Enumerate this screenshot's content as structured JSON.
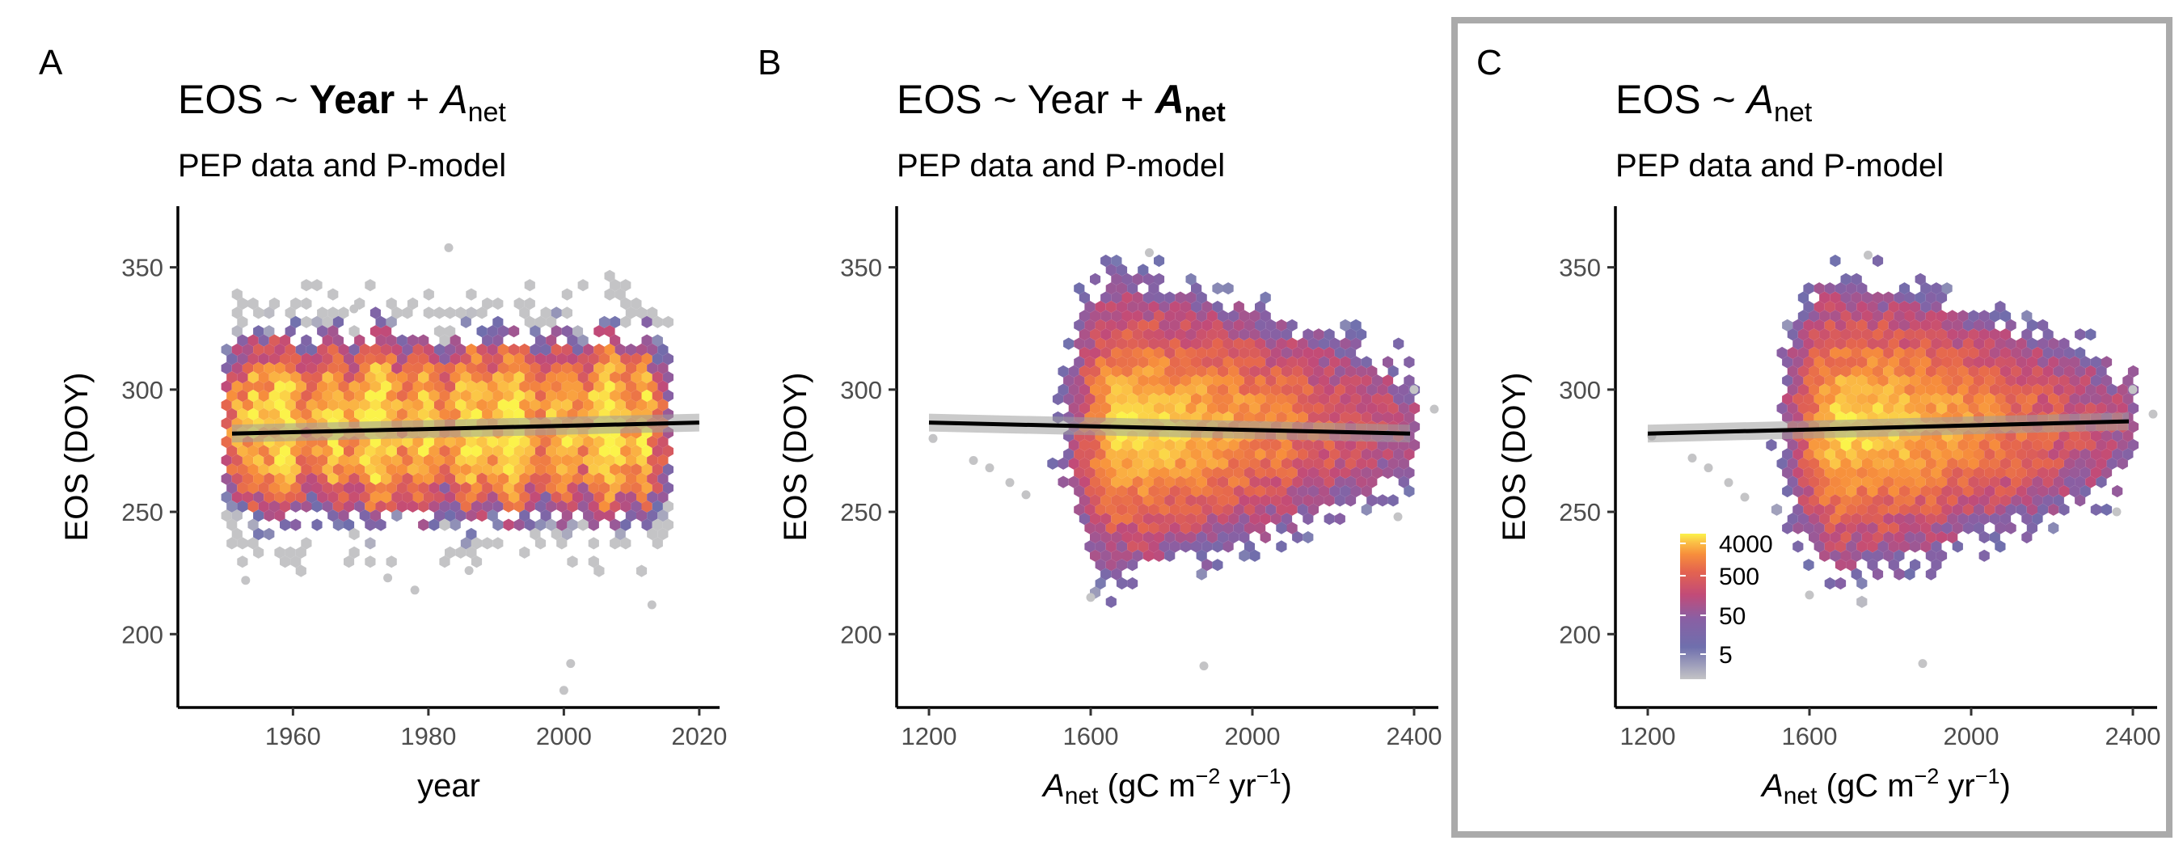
{
  "chart_data": [
    {
      "type": "hexbin",
      "tag": "A",
      "title": {
        "response": "EOS",
        "tilde": "~",
        "terms": [
          {
            "base": "Year",
            "sub": "",
            "bold": true,
            "italic": false
          },
          {
            "op": "+",
            "base": "A",
            "sub": "net",
            "bold": false,
            "italic": true
          }
        ]
      },
      "subtitle": "PEP data and P-model",
      "xlabel": {
        "plain": "year"
      },
      "ylabel": "EOS (DOY)",
      "xlim": [
        1943,
        2023
      ],
      "ylim": [
        170,
        375
      ],
      "xticks": [
        1960,
        1980,
        2000,
        2020
      ],
      "yticks": [
        200,
        250,
        300,
        350
      ],
      "cloud": {
        "x_range": [
          1951,
          2015
        ],
        "y_core": [
          250,
          320
        ],
        "x_peak": 1985,
        "y_peak": 285,
        "style": "uniform"
      },
      "fit_line": {
        "x": [
          1951,
          2020
        ],
        "y": [
          282,
          286.5
        ]
      },
      "outliers": [
        [
          1983,
          358
        ],
        [
          2001,
          188
        ],
        [
          2000,
          177
        ],
        [
          1978,
          218
        ],
        [
          1974,
          223
        ],
        [
          1953,
          222
        ],
        [
          2013,
          212
        ],
        [
          1986,
          226
        ],
        [
          1969,
          333
        ]
      ]
    },
    {
      "type": "hexbin",
      "tag": "B",
      "title": {
        "response": "EOS",
        "tilde": "~",
        "terms": [
          {
            "base": "Year",
            "sub": "",
            "bold": false,
            "italic": false
          },
          {
            "op": "+",
            "base": "A",
            "sub": "net",
            "bold": true,
            "italic": true
          }
        ]
      },
      "subtitle": "PEP data and P-model",
      "xlabel": {
        "italic": "A",
        "sub": "net",
        "rest": " (gC m",
        "sup1": "−2",
        "mid": " yr",
        "sup2": "−1",
        "end": ")"
      },
      "ylabel": "EOS (DOY)",
      "xlim": [
        1120,
        2460
      ],
      "ylim": [
        170,
        375
      ],
      "xticks": [
        1200,
        1600,
        2000,
        2400
      ],
      "yticks": [
        200,
        250,
        300,
        350
      ],
      "cloud": {
        "x_range": [
          1480,
          2390
        ],
        "y_core": [
          240,
          330
        ],
        "x_peak": 1680,
        "y_peak": 285,
        "style": "peaked"
      },
      "fit_line": {
        "x": [
          1200,
          2390
        ],
        "y": [
          286.5,
          282
        ]
      },
      "outliers": [
        [
          1880,
          187
        ],
        [
          1745,
          356
        ],
        [
          1400,
          262
        ],
        [
          1350,
          268
        ],
        [
          1310,
          271
        ],
        [
          1440,
          257
        ],
        [
          1210,
          280
        ],
        [
          2400,
          300
        ],
        [
          2450,
          292
        ],
        [
          2360,
          248
        ],
        [
          1600,
          215
        ]
      ]
    },
    {
      "type": "hexbin",
      "tag": "C",
      "title": {
        "response": "EOS",
        "tilde": "~",
        "terms": [
          {
            "base": "A",
            "sub": "net",
            "bold": false,
            "italic": true
          }
        ]
      },
      "subtitle": "PEP data and P-model",
      "xlabel": {
        "italic": "A",
        "sub": "net",
        "rest": " (gC m",
        "sup1": "−2",
        "mid": " yr",
        "sup2": "−1",
        "end": ")"
      },
      "ylabel": "EOS (DOY)",
      "xlim": [
        1120,
        2460
      ],
      "ylim": [
        170,
        375
      ],
      "xticks": [
        1200,
        1600,
        2000,
        2400
      ],
      "yticks": [
        200,
        250,
        300,
        350
      ],
      "cloud": {
        "x_range": [
          1480,
          2390
        ],
        "y_core": [
          240,
          330
        ],
        "x_peak": 1680,
        "y_peak": 285,
        "style": "peaked"
      },
      "fit_line": {
        "x": [
          1200,
          2390
        ],
        "y": [
          282,
          287
        ]
      },
      "outliers": [
        [
          1880,
          188
        ],
        [
          1745,
          355
        ],
        [
          1400,
          262
        ],
        [
          1350,
          268
        ],
        [
          1310,
          272
        ],
        [
          1440,
          256
        ],
        [
          1210,
          281
        ],
        [
          2400,
          300
        ],
        [
          2450,
          290
        ],
        [
          2360,
          250
        ],
        [
          1600,
          216
        ]
      ],
      "legend": {
        "labels": [
          "4000",
          "500",
          "50",
          "5"
        ],
        "placement": "bottom-left inside"
      }
    }
  ],
  "colors": {
    "scale": [
      "#c4c4c6",
      "#6f6fad",
      "#8a5fa3",
      "#c24b78",
      "#e4644f",
      "#f78f3c",
      "#fbc046",
      "#fbf34a"
    ],
    "fit_line": "#000000",
    "fit_band": "#9e9e9e",
    "panel_frame": "#aaaaaa"
  }
}
